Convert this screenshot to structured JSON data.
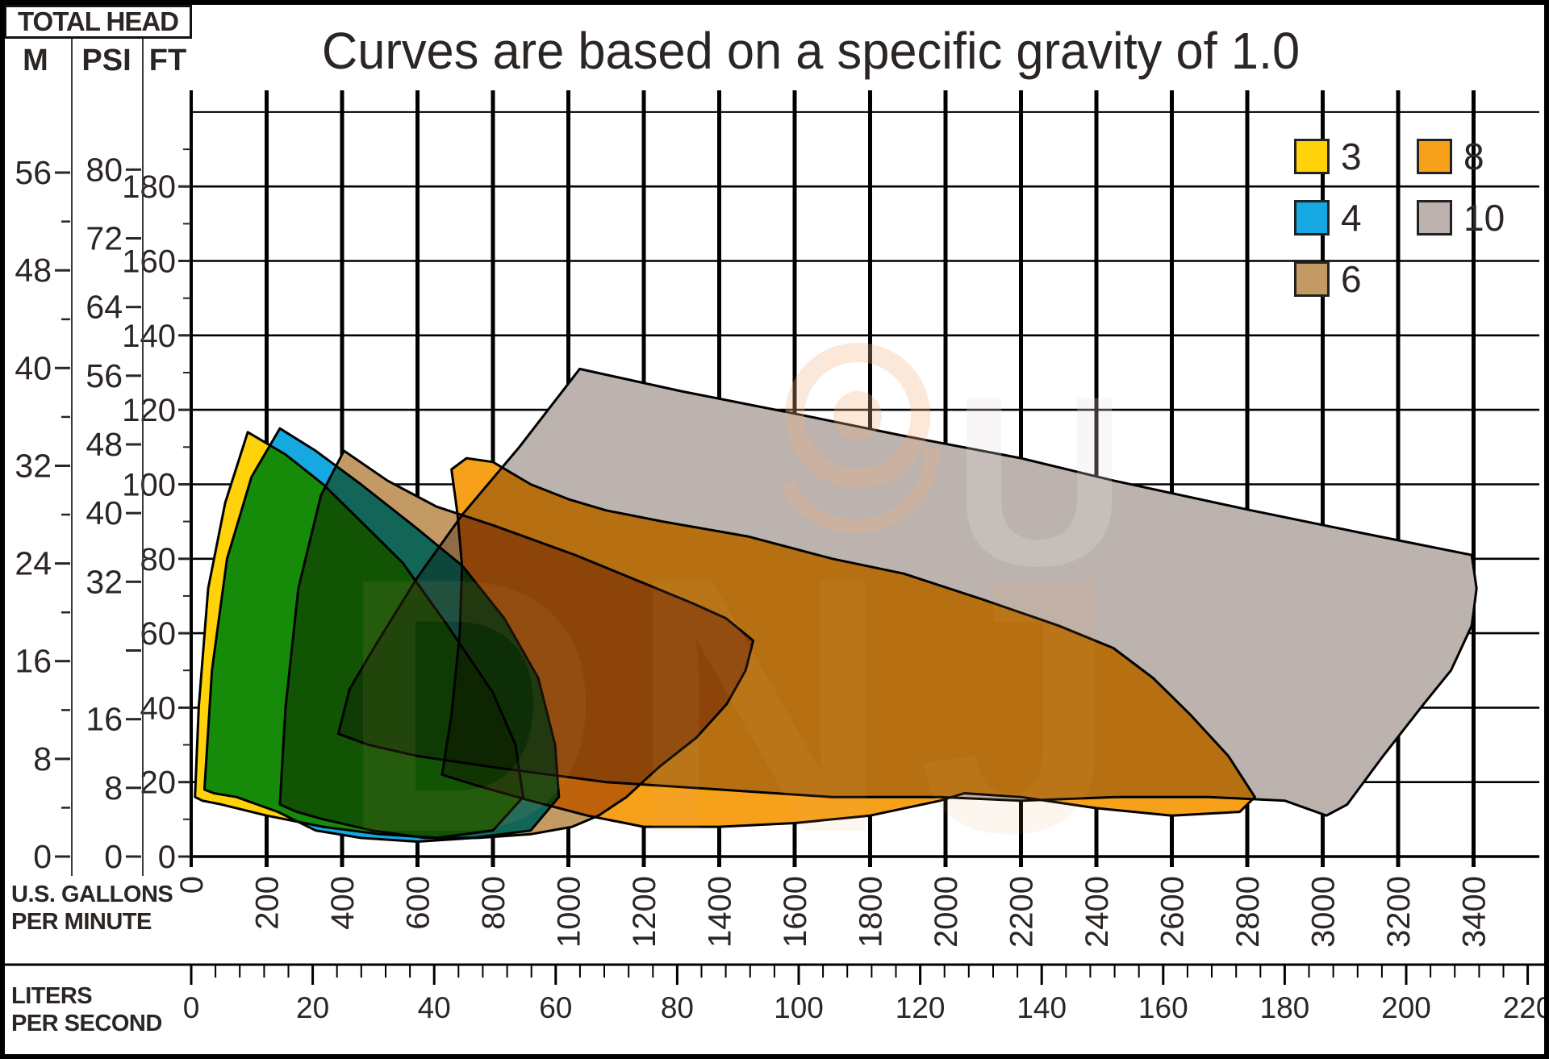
{
  "title": "Curves are based on a specific gravity of 1.0",
  "total_head": {
    "title": "TOTAL HEAD",
    "columns": [
      "M",
      "PSI",
      "FT"
    ]
  },
  "axes": {
    "m": {
      "labels": [
        56,
        48,
        40,
        32,
        24,
        16,
        8,
        0
      ],
      "minor": [
        52,
        44,
        36,
        28,
        20,
        12,
        4
      ]
    },
    "psi": {
      "labels": [
        80,
        72,
        64,
        56,
        48,
        40,
        32,
        16,
        8,
        0
      ],
      "ticks": [
        80,
        72,
        64,
        56,
        48,
        40,
        32,
        24,
        16,
        8,
        0
      ]
    },
    "ft": {
      "labels": [
        180,
        160,
        140,
        120,
        100,
        80,
        60,
        40,
        20,
        0
      ],
      "minor": [
        190,
        170,
        150,
        130,
        110,
        90,
        70,
        50,
        30,
        10
      ]
    },
    "gpm": {
      "caption": [
        "U.S. GALLONS",
        "PER MINUTE"
      ],
      "ticks": [
        0,
        200,
        400,
        600,
        800,
        1000,
        1200,
        1400,
        1600,
        1800,
        2000,
        2200,
        2400,
        2600,
        2800,
        3000,
        3200,
        3400
      ]
    },
    "lps": {
      "caption": [
        "LITERS",
        "PER SECOND"
      ],
      "ticks": [
        0,
        20,
        40,
        60,
        80,
        100,
        120,
        140,
        160,
        180,
        200,
        220
      ],
      "minor_step": 4
    }
  },
  "legend": {
    "items": [
      {
        "label": "3",
        "color": "#FFD20A"
      },
      {
        "label": "8",
        "color": "#F7A11A"
      },
      {
        "label": "4",
        "color": "#16A9E1"
      },
      {
        "label": "10",
        "color": "#BCB2AE"
      },
      {
        "label": "6",
        "color": "#C49A64"
      }
    ]
  },
  "chart_data": {
    "type": "area",
    "title": "Curves are based on a specific gravity of 1.0",
    "xlabel": "U.S. GALLONS PER MINUTE (0-3400) / LITERS PER SECOND (0-220)",
    "ylabel": "TOTAL HEAD: M (0-56) / PSI (0-80) / FT (0-200)",
    "x_range_gpm": [
      0,
      3400
    ],
    "lps_range": [
      0,
      220
    ],
    "y_range_ft": [
      0,
      200
    ],
    "grid": "on",
    "legend_position": "top-right",
    "note": "Overlapping discharge-size envelopes; overlap colors come from multiply blending (yellow+blue=green, blue+tan=teal, tan+orange+gray=dark brown)",
    "series": [
      {
        "name": "3",
        "color": "#FFD20A",
        "units": "GPM,FT",
        "points": [
          [
            10,
            16
          ],
          [
            20,
            40
          ],
          [
            45,
            72
          ],
          [
            90,
            95
          ],
          [
            150,
            114
          ],
          [
            250,
            108
          ],
          [
            350,
            100
          ],
          [
            460,
            89
          ],
          [
            560,
            79
          ],
          [
            680,
            62
          ],
          [
            800,
            44
          ],
          [
            860,
            30
          ],
          [
            880,
            16
          ],
          [
            800,
            7
          ],
          [
            650,
            5
          ],
          [
            500,
            6
          ],
          [
            350,
            8
          ],
          [
            200,
            11
          ],
          [
            80,
            14
          ],
          [
            30,
            15
          ]
        ]
      },
      {
        "name": "4",
        "color": "#16A9E1",
        "units": "GPM,FT",
        "points": [
          [
            35,
            18
          ],
          [
            55,
            50
          ],
          [
            95,
            80
          ],
          [
            160,
            102
          ],
          [
            235,
            115
          ],
          [
            330,
            109
          ],
          [
            450,
            100
          ],
          [
            600,
            88
          ],
          [
            720,
            78
          ],
          [
            830,
            64
          ],
          [
            920,
            48
          ],
          [
            965,
            30
          ],
          [
            975,
            16
          ],
          [
            900,
            7
          ],
          [
            750,
            5
          ],
          [
            600,
            4
          ],
          [
            450,
            5
          ],
          [
            330,
            7
          ],
          [
            230,
            12
          ],
          [
            120,
            16
          ],
          [
            60,
            17
          ]
        ]
      },
      {
        "name": "6",
        "color": "#C49A64",
        "units": "GPM,FT",
        "points": [
          [
            235,
            14
          ],
          [
            250,
            40
          ],
          [
            284,
            72
          ],
          [
            344,
            97
          ],
          [
            405,
            109
          ],
          [
            520,
            101
          ],
          [
            650,
            94
          ],
          [
            800,
            89
          ],
          [
            1018,
            81
          ],
          [
            1211,
            73
          ],
          [
            1330,
            68
          ],
          [
            1418,
            64
          ],
          [
            1490,
            58
          ],
          [
            1470,
            50
          ],
          [
            1420,
            41
          ],
          [
            1340,
            32
          ],
          [
            1240,
            24
          ],
          [
            1154,
            16
          ],
          [
            1080,
            11
          ],
          [
            1010,
            8
          ],
          [
            900,
            6
          ],
          [
            760,
            5
          ],
          [
            620,
            5
          ],
          [
            480,
            7
          ],
          [
            350,
            10
          ],
          [
            280,
            12
          ]
        ]
      },
      {
        "name": "8",
        "color": "#F7A11A",
        "units": "GPM,FT",
        "points": [
          [
            665,
            22
          ],
          [
            690,
            38
          ],
          [
            712,
            60
          ],
          [
            718,
            78
          ],
          [
            706,
            92
          ],
          [
            690,
            104
          ],
          [
            730,
            107
          ],
          [
            800,
            106
          ],
          [
            900,
            100
          ],
          [
            1000,
            96
          ],
          [
            1100,
            93
          ],
          [
            1250,
            90
          ],
          [
            1476,
            86
          ],
          [
            1700,
            80
          ],
          [
            1889,
            76
          ],
          [
            2100,
            69
          ],
          [
            2300,
            62
          ],
          [
            2445,
            56
          ],
          [
            2550,
            48
          ],
          [
            2650,
            38
          ],
          [
            2750,
            27
          ],
          [
            2820,
            16
          ],
          [
            2780,
            12
          ],
          [
            2600,
            11
          ],
          [
            2400,
            13
          ],
          [
            2200,
            16
          ],
          [
            2050,
            17
          ],
          [
            1985,
            15
          ],
          [
            1800,
            11
          ],
          [
            1600,
            9
          ],
          [
            1400,
            8
          ],
          [
            1200,
            8
          ],
          [
            1050,
            11
          ],
          [
            900,
            15
          ],
          [
            760,
            19
          ]
        ]
      },
      {
        "name": "10",
        "color": "#BCB2AE",
        "units": "GPM,FT",
        "points": [
          [
            390,
            33
          ],
          [
            420,
            45
          ],
          [
            490,
            57
          ],
          [
            600,
            75
          ],
          [
            720,
            92
          ],
          [
            870,
            110
          ],
          [
            1030,
            131
          ],
          [
            1300,
            125
          ],
          [
            1600,
            119
          ],
          [
            1889,
            113
          ],
          [
            2200,
            107
          ],
          [
            2445,
            101
          ],
          [
            2811,
            93
          ],
          [
            3100,
            87
          ],
          [
            3395,
            81
          ],
          [
            3408,
            72
          ],
          [
            3395,
            62
          ],
          [
            3340,
            50
          ],
          [
            3268,
            41
          ],
          [
            3160,
            27
          ],
          [
            3065,
            14
          ],
          [
            3010,
            11
          ],
          [
            2900,
            15
          ],
          [
            2700,
            16
          ],
          [
            2450,
            16
          ],
          [
            2200,
            15
          ],
          [
            1985,
            16
          ],
          [
            1700,
            16
          ],
          [
            1400,
            18
          ],
          [
            1100,
            20
          ],
          [
            800,
            24
          ],
          [
            600,
            27
          ],
          [
            470,
            30
          ]
        ]
      }
    ]
  }
}
